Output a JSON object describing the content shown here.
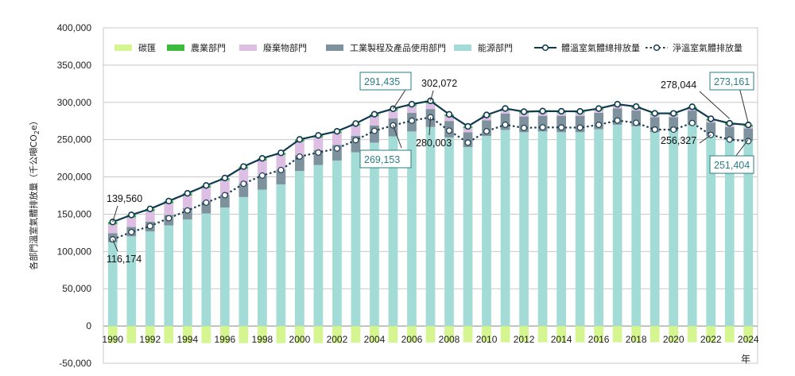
{
  "chart_data": {
    "type": "bar",
    "ylabel": "各部門溫室氣體排放量（千公噸CO₂e）",
    "ylabel_main": "各部門溫室氣體排放量（千公噸CO",
    "ylabel_sub": "2",
    "ylabel_tail": "e）",
    "xunit": "年",
    "ylim": [
      -50000,
      400000
    ],
    "yticks": [
      -50000,
      0,
      50000,
      100000,
      150000,
      200000,
      250000,
      300000,
      350000,
      400000
    ],
    "ytick_labels": [
      "-50,000",
      "0",
      "50,000",
      "100,000",
      "150,000",
      "200,000",
      "250,000",
      "300,000",
      "350,000",
      "400,000"
    ],
    "grid": true,
    "legend_position": "top",
    "categories": [
      1990,
      1991,
      1992,
      1993,
      1994,
      1995,
      1996,
      1997,
      1998,
      1999,
      2000,
      2001,
      2002,
      2003,
      2004,
      2005,
      2006,
      2007,
      2008,
      2009,
      2010,
      2011,
      2012,
      2013,
      2014,
      2015,
      2016,
      2017,
      2018,
      2019,
      2020,
      2021,
      2022,
      2023,
      2024
    ],
    "xtick_labels": [
      "1990",
      "1992",
      "1994",
      "1996",
      "1998",
      "2000",
      "2002",
      "2004",
      "2006",
      "2008",
      "2010",
      "2012",
      "2014",
      "2016",
      "2018",
      "2020",
      "2022",
      "2024"
    ],
    "series": [
      {
        "name": "碳匯",
        "type": "bar",
        "color": "#d5f590",
        "values": [
          -23000,
          -23000,
          -23000,
          -23000,
          -23000,
          -23000,
          -23000,
          -23000,
          -23000,
          -23000,
          -23000,
          -23000,
          -23000,
          -22300,
          -22300,
          -22300,
          -22000,
          -22000,
          -21800,
          -21800,
          -21800,
          -21800,
          -21800,
          -21800,
          -21800,
          -21800,
          -21800,
          -21800,
          -21800,
          -21800,
          -21800,
          -21800,
          -21800,
          -21800,
          -21800
        ]
      },
      {
        "name": "農業部門",
        "type": "bar",
        "color": "#3dbb3d",
        "values": [
          3200,
          3200,
          3100,
          3100,
          3000,
          3000,
          3000,
          2900,
          2900,
          2800,
          2800,
          2700,
          2700,
          2600,
          2600,
          2500,
          2500,
          2400,
          2400,
          2300,
          2300,
          2300,
          2300,
          2300,
          2300,
          2300,
          2300,
          2300,
          2300,
          2300,
          2300,
          2300,
          2300,
          2300,
          2300
        ]
      },
      {
        "name": "廢棄物部門",
        "type": "bar",
        "color": "#ddbfe4",
        "values": [
          12000,
          13000,
          14000,
          15500,
          17000,
          18500,
          19500,
          20000,
          20000,
          19500,
          18500,
          17000,
          15500,
          14000,
          12500,
          10500,
          9000,
          7500,
          6500,
          5500,
          4800,
          4500,
          4200,
          4000,
          3800,
          3600,
          3400,
          3200,
          3100,
          3000,
          2900,
          2800,
          2700,
          2600,
          2500
        ]
      },
      {
        "name": "工業製程及產品使用部門",
        "type": "bar",
        "color": "#7d929c",
        "values": [
          12000,
          12500,
          13000,
          14000,
          15000,
          16000,
          17000,
          18000,
          19000,
          20000,
          21000,
          20000,
          21000,
          22000,
          23000,
          24000,
          25000,
          24000,
          22000,
          20000,
          21000,
          22000,
          21000,
          21000,
          22000,
          22000,
          22000,
          22000,
          21000,
          20000,
          19000,
          19000,
          18000,
          17000,
          17000
        ]
      },
      {
        "name": "能源部門",
        "type": "bar",
        "color": "#a3dcd7",
        "values": [
          112360,
          120300,
          127000,
          135000,
          143000,
          151000,
          159000,
          173000,
          183000,
          190000,
          208000,
          216000,
          222000,
          233000,
          246000,
          254435,
          261000,
          267072,
          253000,
          240000,
          255000,
          263000,
          260000,
          261000,
          260000,
          260000,
          264000,
          270000,
          268000,
          260000,
          261000,
          270000,
          255000,
          250000,
          248000
        ]
      },
      {
        "name": "體溫室氣體總排放量",
        "type": "line",
        "color": "#0f3b50",
        "marker": "circle",
        "values": [
          139560,
          149000,
          157100,
          167600,
          178000,
          188500,
          198500,
          213900,
          224900,
          232300,
          250300,
          255700,
          261200,
          271600,
          284100,
          291435,
          297500,
          302072,
          283900,
          267800,
          283100,
          291800,
          287500,
          288300,
          288100,
          287900,
          291700,
          297500,
          294400,
          285300,
          285200,
          294100,
          278000,
          271900,
          269800
        ]
      },
      {
        "name": "淨溫室氣體排放量",
        "type": "line",
        "color": "#1c3d52",
        "marker": "open-circle",
        "dashed": true,
        "values": [
          116174,
          126000,
          134100,
          144600,
          155000,
          165500,
          175500,
          190900,
          201900,
          209300,
          227300,
          232700,
          238200,
          249300,
          261800,
          269153,
          275500,
          280003,
          262100,
          246000,
          261300,
          270000,
          265700,
          266500,
          266300,
          266100,
          269900,
          275700,
          272600,
          263500,
          263400,
          272300,
          256327,
          250100,
          248000
        ]
      }
    ],
    "annotations": [
      {
        "text": "139,560",
        "boxed": false
      },
      {
        "text": "116,174",
        "boxed": false
      },
      {
        "text": "291,435",
        "boxed": true
      },
      {
        "text": "302,072",
        "boxed": false
      },
      {
        "text": "269,153",
        "boxed": true
      },
      {
        "text": "280,003",
        "boxed": false
      },
      {
        "text": "278,044",
        "boxed": false
      },
      {
        "text": "273,161",
        "boxed": true
      },
      {
        "text": "256,327",
        "boxed": false
      },
      {
        "text": "251,404",
        "boxed": true
      }
    ]
  }
}
